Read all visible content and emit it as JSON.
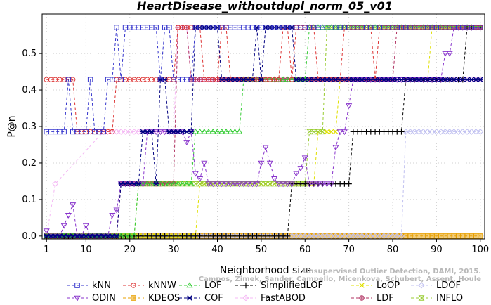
{
  "chart_data": {
    "type": "line",
    "title": "HeartDisease_withoutdupl_norm_05_v01",
    "xlabel": "Neighborhood size",
    "ylabel": "P@n",
    "xlim": [
      1,
      100
    ],
    "ylim": [
      0,
      0.6
    ],
    "xticks": [
      1,
      10,
      20,
      30,
      40,
      50,
      60,
      70,
      80,
      90,
      100
    ],
    "yticks": [
      0.0,
      0.1,
      0.2,
      0.3,
      0.4,
      0.5
    ],
    "legend_position": "bottom",
    "watermark": [
      "Campos, Zimek, Sander, Campello, Micenkova, Schubert, Assent, Houle",
      "Unsupervised Outlier Detection, DAMI, 2015."
    ],
    "series": [
      {
        "name": "kNN",
        "color": "#3333cc",
        "marker": "square",
        "segments": [
          [
            1,
            5,
            0.2857
          ],
          [
            6,
            6,
            0.4286
          ],
          [
            7,
            10,
            0.2857
          ],
          [
            11,
            11,
            0.4286
          ],
          [
            12,
            14,
            0.2857
          ],
          [
            15,
            16,
            0.4286
          ],
          [
            17,
            17,
            0.5714
          ],
          [
            18,
            18,
            0.4286
          ],
          [
            19,
            26,
            0.5714
          ],
          [
            27,
            27,
            0.4286
          ],
          [
            28,
            29,
            0.5714
          ],
          [
            30,
            30,
            0.4286
          ],
          [
            31,
            34,
            0.4286
          ],
          [
            35,
            100,
            0.5714
          ]
        ]
      },
      {
        "name": "kNNW",
        "color": "#dd3333",
        "marker": "circle",
        "segments": [
          [
            1,
            7,
            0.4286
          ],
          [
            8,
            15,
            0.2857
          ],
          [
            16,
            16,
            0.2857
          ],
          [
            17,
            17,
            0.4286
          ],
          [
            18,
            30,
            0.4286
          ],
          [
            31,
            36,
            0.5714
          ],
          [
            37,
            40,
            0.4286
          ],
          [
            41,
            42,
            0.5714
          ],
          [
            43,
            54,
            0.4286
          ],
          [
            55,
            56,
            0.5714
          ],
          [
            57,
            57,
            0.4286
          ],
          [
            58,
            62,
            0.5714
          ],
          [
            63,
            68,
            0.4286
          ],
          [
            69,
            75,
            0.5714
          ],
          [
            76,
            76,
            0.4286
          ],
          [
            77,
            100,
            0.5714
          ]
        ]
      },
      {
        "name": "LOF",
        "color": "#33cc33",
        "marker": "triangle-up",
        "segments": [
          [
            1,
            21,
            0.0
          ],
          [
            22,
            22,
            0.1429
          ],
          [
            23,
            33,
            0.1429
          ],
          [
            34,
            34,
            0.1429
          ],
          [
            35,
            45,
            0.2857
          ],
          [
            46,
            46,
            0.4286
          ],
          [
            47,
            60,
            0.4286
          ],
          [
            61,
            61,
            0.5714
          ],
          [
            62,
            100,
            0.5714
          ]
        ]
      },
      {
        "name": "SimplifiedLOF",
        "color": "#000000",
        "marker": "plus",
        "segments": [
          [
            1,
            56,
            0.0
          ],
          [
            57,
            70,
            0.1429
          ],
          [
            71,
            82,
            0.2857
          ],
          [
            83,
            96,
            0.4286
          ],
          [
            97,
            100,
            0.5714
          ]
        ]
      },
      {
        "name": "LoOP",
        "color": "#e0e000",
        "marker": "cross",
        "segments": [
          [
            1,
            35,
            0.0
          ],
          [
            36,
            50,
            0.1429
          ],
          [
            51,
            62,
            0.1429
          ],
          [
            63,
            67,
            0.2857
          ],
          [
            68,
            88,
            0.4286
          ],
          [
            89,
            100,
            0.5714
          ]
        ]
      },
      {
        "name": "LDOF",
        "color": "#c0c0f0",
        "marker": "diamond",
        "segments": [
          [
            1,
            82,
            0.0
          ],
          [
            83,
            100,
            0.2857
          ]
        ]
      },
      {
        "name": "ODIN",
        "color": "#8833cc",
        "marker": "triangle-down",
        "points": [
          [
            1,
            0.0143
          ],
          [
            2,
            0.0
          ],
          [
            3,
            0.0
          ],
          [
            4,
            0.0
          ],
          [
            5,
            0.0286
          ],
          [
            6,
            0.0571
          ],
          [
            7,
            0.0857
          ],
          [
            8,
            0.0
          ],
          [
            9,
            0.0
          ],
          [
            10,
            0.0286
          ],
          [
            11,
            0.0
          ],
          [
            12,
            0.0
          ],
          [
            13,
            0.0
          ],
          [
            14,
            0.0
          ],
          [
            15,
            0.0
          ],
          [
            16,
            0.0571
          ],
          [
            17,
            0.0714
          ],
          [
            18,
            0.1429
          ],
          [
            19,
            0.1429
          ],
          [
            20,
            0.1429
          ],
          [
            21,
            0.1429
          ],
          [
            22,
            0.1429
          ],
          [
            23,
            0.1429
          ],
          [
            24,
            0.2857
          ],
          [
            25,
            0.2857
          ],
          [
            26,
            0.2857
          ],
          [
            27,
            0.2857
          ],
          [
            28,
            0.2857
          ],
          [
            29,
            0.2857
          ],
          [
            30,
            0.2857
          ],
          [
            31,
            0.2857
          ],
          [
            32,
            0.2857
          ],
          [
            33,
            0.2571
          ],
          [
            34,
            0.2857
          ],
          [
            35,
            0.1714
          ],
          [
            36,
            0.1571
          ],
          [
            37,
            0.2
          ],
          [
            38,
            0.1429
          ],
          [
            39,
            0.1429
          ],
          [
            40,
            0.1429
          ],
          [
            41,
            0.1429
          ],
          [
            42,
            0.1429
          ],
          [
            43,
            0.1429
          ],
          [
            44,
            0.1429
          ],
          [
            45,
            0.1429
          ],
          [
            46,
            0.1429
          ],
          [
            47,
            0.1429
          ],
          [
            48,
            0.1429
          ],
          [
            49,
            0.1429
          ],
          [
            50,
            0.2
          ],
          [
            51,
            0.2429
          ],
          [
            52,
            0.2
          ],
          [
            53,
            0.1571
          ],
          [
            54,
            0.1429
          ],
          [
            55,
            0.1429
          ],
          [
            56,
            0.1429
          ],
          [
            57,
            0.1429
          ],
          [
            58,
            0.1714
          ],
          [
            59,
            0.1857
          ],
          [
            60,
            0.2143
          ],
          [
            61,
            0.1429
          ],
          [
            62,
            0.1429
          ],
          [
            63,
            0.1429
          ],
          [
            64,
            0.1429
          ],
          [
            65,
            0.1429
          ],
          [
            66,
            0.1429
          ],
          [
            67,
            0.2429
          ],
          [
            68,
            0.2857
          ],
          [
            69,
            0.2857
          ],
          [
            70,
            0.3571
          ],
          [
            71,
            0.4286
          ],
          [
            72,
            0.4286
          ],
          [
            73,
            0.4286
          ],
          [
            74,
            0.4286
          ],
          [
            75,
            0.4286
          ],
          [
            76,
            0.4286
          ],
          [
            77,
            0.4286
          ],
          [
            78,
            0.4286
          ],
          [
            79,
            0.4286
          ],
          [
            80,
            0.4286
          ],
          [
            81,
            0.4286
          ],
          [
            82,
            0.4286
          ],
          [
            83,
            0.4286
          ],
          [
            84,
            0.4286
          ],
          [
            85,
            0.4286
          ],
          [
            86,
            0.4286
          ],
          [
            87,
            0.4286
          ],
          [
            88,
            0.4286
          ],
          [
            89,
            0.4286
          ],
          [
            90,
            0.4286
          ],
          [
            91,
            0.4286
          ],
          [
            92,
            0.5
          ],
          [
            93,
            0.5
          ],
          [
            94,
            0.5714
          ],
          [
            95,
            0.5714
          ],
          [
            96,
            0.5714
          ],
          [
            97,
            0.5714
          ],
          [
            98,
            0.5714
          ],
          [
            99,
            0.5714
          ],
          [
            100,
            0.5714
          ]
        ]
      },
      {
        "name": "KDEOS",
        "color": "#e8a000",
        "marker": "square-filled",
        "segments": [
          [
            1,
            100,
            0.0
          ]
        ]
      },
      {
        "name": "COF",
        "color": "#000080",
        "marker": "star",
        "segments": [
          [
            1,
            17,
            0.0
          ],
          [
            18,
            22,
            0.1429
          ],
          [
            23,
            25,
            0.2857
          ],
          [
            26,
            26,
            0.1429
          ],
          [
            27,
            28,
            0.4286
          ],
          [
            29,
            34,
            0.2857
          ],
          [
            35,
            40,
            0.5714
          ],
          [
            41,
            48,
            0.4286
          ],
          [
            49,
            49,
            0.5714
          ],
          [
            50,
            50,
            0.4286
          ],
          [
            51,
            57,
            0.5714
          ],
          [
            58,
            100,
            0.4286
          ]
        ]
      },
      {
        "name": "FastABOD",
        "color": "#f4b8f4",
        "marker": "diamond",
        "segments": [
          [
            1,
            1,
            0.0
          ],
          [
            3,
            3,
            0.1429
          ],
          [
            14,
            30,
            0.2857
          ],
          [
            31,
            33,
            0.5714
          ],
          [
            34,
            100,
            0.4286
          ]
        ]
      },
      {
        "name": "LDF",
        "color": "#b03060",
        "marker": "circle-plus",
        "segments": [
          [
            1,
            17,
            0.0
          ],
          [
            18,
            30,
            0.1429
          ],
          [
            31,
            33,
            0.5714
          ],
          [
            34,
            80,
            0.4286
          ],
          [
            81,
            100,
            0.5714
          ]
        ]
      },
      {
        "name": "INFLO",
        "color": "#99cc33",
        "marker": "hourglass",
        "segments": [
          [
            1,
            21,
            0.0
          ],
          [
            22,
            60,
            0.1429
          ],
          [
            61,
            64,
            0.2857
          ],
          [
            65,
            100,
            0.5714
          ]
        ]
      }
    ]
  }
}
